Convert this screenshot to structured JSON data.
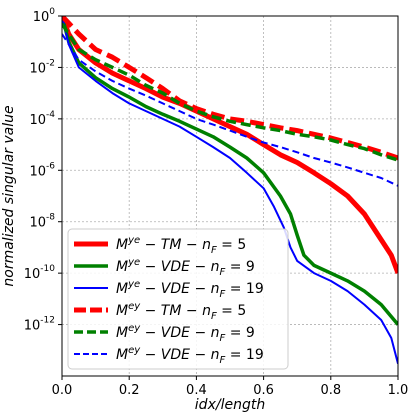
{
  "chart_data": {
    "type": "line",
    "xlabel": "idx/length",
    "ylabel": "normalized singular value",
    "xlim": [
      0.0,
      1.0
    ],
    "ylim": [
      1e-14,
      1
    ],
    "yscale": "log",
    "grid": true,
    "legend_position": "lower-left",
    "x_ticks": [
      "0.0",
      "0.2",
      "0.4",
      "0.6",
      "0.8",
      "1.0"
    ],
    "y_ticks": [
      {
        "mantissa": "10",
        "exponent": "0"
      },
      {
        "mantissa": "10",
        "exponent": "-2"
      },
      {
        "mantissa": "10",
        "exponent": "-4"
      },
      {
        "mantissa": "10",
        "exponent": "-6"
      },
      {
        "mantissa": "10",
        "exponent": "-8"
      },
      {
        "mantissa": "10",
        "exponent": "-10"
      },
      {
        "mantissa": "10",
        "exponent": "-12"
      }
    ],
    "series": [
      {
        "name": "M^ye − TM − n_F = 5",
        "legend": {
          "m_sup": "ye",
          "mid": " − TM − ",
          "n_val": "5"
        },
        "color": "#ff0000",
        "style": "solid",
        "width": 5,
        "x": [
          0.0,
          0.02,
          0.05,
          0.1,
          0.15,
          0.2,
          0.25,
          0.3,
          0.35,
          0.4,
          0.45,
          0.5,
          0.55,
          0.6,
          0.65,
          0.7,
          0.75,
          0.8,
          0.85,
          0.9,
          0.95,
          0.98,
          1.0
        ],
        "y": [
          1.0,
          0.2,
          0.05,
          0.015,
          0.006,
          0.003,
          0.0015,
          0.0007,
          0.0004,
          0.0002,
          0.0001,
          5e-05,
          2.5e-05,
          1e-05,
          4e-06,
          2e-06,
          8e-07,
          3e-07,
          1e-07,
          2e-08,
          2e-09,
          5e-10,
          1e-10
        ]
      },
      {
        "name": "M^ye − VDE − n_F = 9",
        "legend": {
          "m_sup": "ye",
          "mid": " − VDE − ",
          "n_val": "9"
        },
        "color": "#008000",
        "style": "solid",
        "width": 3.5,
        "x": [
          0.0,
          0.02,
          0.05,
          0.1,
          0.15,
          0.2,
          0.25,
          0.3,
          0.35,
          0.4,
          0.45,
          0.5,
          0.55,
          0.6,
          0.65,
          0.68,
          0.7,
          0.72,
          0.75,
          0.8,
          0.85,
          0.9,
          0.95,
          1.0
        ],
        "y": [
          1.0,
          0.1,
          0.015,
          0.004,
          0.0015,
          0.0007,
          0.0003,
          0.00015,
          8e-05,
          4e-05,
          2e-05,
          8e-06,
          3e-06,
          8e-07,
          1e-07,
          2e-08,
          3e-09,
          5e-10,
          2e-10,
          1e-10,
          5e-11,
          2e-11,
          6e-12,
          1e-12
        ]
      },
      {
        "name": "M^ye − VDE − n_F = 19",
        "legend": {
          "m_sup": "ye",
          "mid": " − VDE − ",
          "n_val": "19"
        },
        "color": "#0000ff",
        "style": "solid",
        "width": 2,
        "x": [
          0.0,
          0.02,
          0.05,
          0.1,
          0.15,
          0.2,
          0.25,
          0.3,
          0.35,
          0.4,
          0.45,
          0.5,
          0.55,
          0.6,
          0.63,
          0.66,
          0.68,
          0.7,
          0.75,
          0.8,
          0.85,
          0.9,
          0.95,
          0.98,
          1.0
        ],
        "y": [
          1.0,
          0.08,
          0.01,
          0.003,
          0.001,
          0.0004,
          0.0002,
          0.0001,
          5e-05,
          2e-05,
          8e-06,
          3e-06,
          8e-07,
          2e-07,
          4e-08,
          6e-09,
          1e-09,
          3e-10,
          1e-10,
          5e-11,
          2e-11,
          6e-12,
          1.5e-12,
          3e-13,
          3e-14
        ]
      },
      {
        "name": "M^ey − TM − n_F = 5",
        "legend": {
          "m_sup": "ey",
          "mid": " − TM − ",
          "n_val": "5"
        },
        "color": "#ff0000",
        "style": "dashed",
        "width": 5,
        "x": [
          0.0,
          0.05,
          0.1,
          0.15,
          0.2,
          0.25,
          0.3,
          0.35,
          0.4,
          0.45,
          0.5,
          0.55,
          0.6,
          0.65,
          0.7,
          0.75,
          0.8,
          0.85,
          0.9,
          0.95,
          1.0
        ],
        "y": [
          1.0,
          0.2,
          0.05,
          0.025,
          0.01,
          0.004,
          0.0015,
          0.0005,
          0.00025,
          0.00015,
          0.0001,
          8e-05,
          6e-05,
          4.5e-05,
          3.5e-05,
          2.5e-05,
          1.8e-05,
          1.2e-05,
          8e-06,
          5e-06,
          3e-06
        ]
      },
      {
        "name": "M^ey − VDE − n_F = 9",
        "legend": {
          "m_sup": "ey",
          "mid": " − VDE − ",
          "n_val": "9"
        },
        "color": "#008000",
        "style": "dashed",
        "width": 3.5,
        "x": [
          0.0,
          0.05,
          0.1,
          0.15,
          0.2,
          0.25,
          0.3,
          0.35,
          0.4,
          0.45,
          0.5,
          0.55,
          0.6,
          0.65,
          0.7,
          0.75,
          0.8,
          0.85,
          0.9,
          0.95,
          1.0
        ],
        "y": [
          0.5,
          0.05,
          0.02,
          0.01,
          0.005,
          0.002,
          0.001,
          0.0004,
          0.0002,
          0.00012,
          8e-05,
          6e-05,
          4.5e-05,
          3.5e-05,
          2.5e-05,
          2e-05,
          1.5e-05,
          1e-05,
          7e-06,
          4e-06,
          2.5e-06
        ]
      },
      {
        "name": "M^ey − VDE − n_F = 19",
        "legend": {
          "m_sup": "ey",
          "mid": " − VDE − ",
          "n_val": "19"
        },
        "color": "#0000ff",
        "style": "dashed",
        "width": 2,
        "x": [
          0.0,
          0.05,
          0.1,
          0.15,
          0.2,
          0.25,
          0.3,
          0.35,
          0.4,
          0.45,
          0.5,
          0.55,
          0.6,
          0.65,
          0.7,
          0.75,
          0.8,
          0.85,
          0.9,
          0.95,
          1.0
        ],
        "y": [
          0.2,
          0.02,
          0.007,
          0.003,
          0.0015,
          0.0008,
          0.0004,
          0.0002,
          0.0001,
          6e-05,
          3.5e-05,
          2e-05,
          1.2e-05,
          8e-06,
          5e-06,
          3e-06,
          2e-06,
          1.3e-06,
          8e-07,
          5e-07,
          2.5e-07
        ]
      }
    ]
  }
}
